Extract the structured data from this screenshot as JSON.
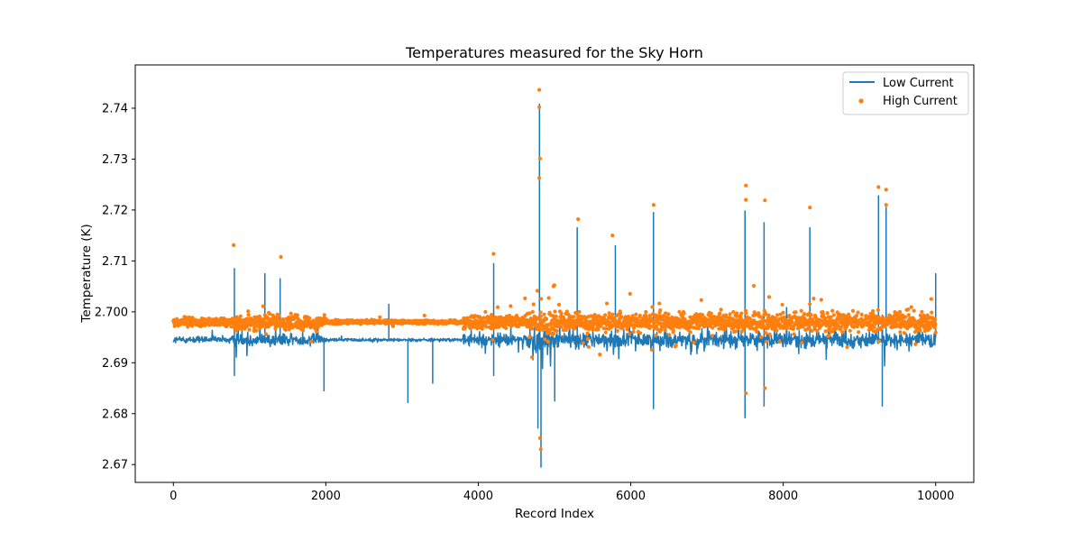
{
  "chart_data": {
    "type": "line+scatter",
    "title": "Temperatures measured for the Sky Horn",
    "xlabel": "Record Index",
    "ylabel": "Temperature (K)",
    "xlim": [
      -500,
      10500
    ],
    "ylim": [
      2.6665,
      2.7485
    ],
    "xticks": [
      0,
      2000,
      4000,
      6000,
      8000,
      10000
    ],
    "xtick_labels": [
      "0",
      "2000",
      "4000",
      "6000",
      "8000",
      "10000"
    ],
    "yticks": [
      2.67,
      2.68,
      2.69,
      2.7,
      2.71,
      2.72,
      2.73,
      2.74
    ],
    "ytick_labels": [
      "2.67",
      "2.68",
      "2.69",
      "2.700",
      "2.71",
      "2.72",
      "2.73",
      "2.74"
    ],
    "legend_position": "top-right",
    "series": [
      {
        "name": "Low Current",
        "kind": "line",
        "color": "#1f77b4",
        "baseline": 2.6945,
        "x_range": [
          0,
          10000
        ],
        "spikes": [
          {
            "x": 800,
            "value": 2.7085
          },
          {
            "x": 800,
            "value": 2.6875
          },
          {
            "x": 1200,
            "value": 2.7075
          },
          {
            "x": 1400,
            "value": 2.7065
          },
          {
            "x": 1975,
            "value": 2.6845
          },
          {
            "x": 2825,
            "value": 2.7015
          },
          {
            "x": 3075,
            "value": 2.6822
          },
          {
            "x": 3400,
            "value": 2.686
          },
          {
            "x": 4200,
            "value": 2.7095
          },
          {
            "x": 4200,
            "value": 2.6875
          },
          {
            "x": 4800,
            "value": 2.7408
          },
          {
            "x": 4820,
            "value": 2.6695
          },
          {
            "x": 4780,
            "value": 2.6772
          },
          {
            "x": 5000,
            "value": 2.6825
          },
          {
            "x": 5300,
            "value": 2.7165
          },
          {
            "x": 5800,
            "value": 2.713
          },
          {
            "x": 6300,
            "value": 2.7195
          },
          {
            "x": 6300,
            "value": 2.681
          },
          {
            "x": 7500,
            "value": 2.7198
          },
          {
            "x": 7500,
            "value": 2.6792
          },
          {
            "x": 7750,
            "value": 2.7175
          },
          {
            "x": 7750,
            "value": 2.6815
          },
          {
            "x": 8350,
            "value": 2.7165
          },
          {
            "x": 9250,
            "value": 2.7228
          },
          {
            "x": 9300,
            "value": 2.6815
          },
          {
            "x": 9350,
            "value": 2.7205
          },
          {
            "x": 10000,
            "value": 2.7075
          }
        ]
      },
      {
        "name": "High Current",
        "kind": "scatter",
        "color": "#ff7f0e",
        "baseline": 2.698,
        "x_range": [
          0,
          10000
        ],
        "outliers": [
          {
            "x": 790,
            "value": 2.7131
          },
          {
            "x": 1410,
            "value": 2.7108
          },
          {
            "x": 4200,
            "value": 2.7114
          },
          {
            "x": 4800,
            "value": 2.7436
          },
          {
            "x": 4800,
            "value": 2.7402
          },
          {
            "x": 4810,
            "value": 2.7301
          },
          {
            "x": 4800,
            "value": 2.7263
          },
          {
            "x": 4820,
            "value": 2.673
          },
          {
            "x": 4810,
            "value": 2.6752
          },
          {
            "x": 5310,
            "value": 2.7182
          },
          {
            "x": 5760,
            "value": 2.715
          },
          {
            "x": 6300,
            "value": 2.721
          },
          {
            "x": 7510,
            "value": 2.7248
          },
          {
            "x": 7510,
            "value": 2.722
          },
          {
            "x": 7760,
            "value": 2.7219
          },
          {
            "x": 8350,
            "value": 2.7205
          },
          {
            "x": 9250,
            "value": 2.7245
          },
          {
            "x": 9350,
            "value": 2.724
          },
          {
            "x": 9350,
            "value": 2.721
          },
          {
            "x": 7510,
            "value": 2.684
          },
          {
            "x": 7760,
            "value": 2.685
          }
        ]
      }
    ]
  }
}
